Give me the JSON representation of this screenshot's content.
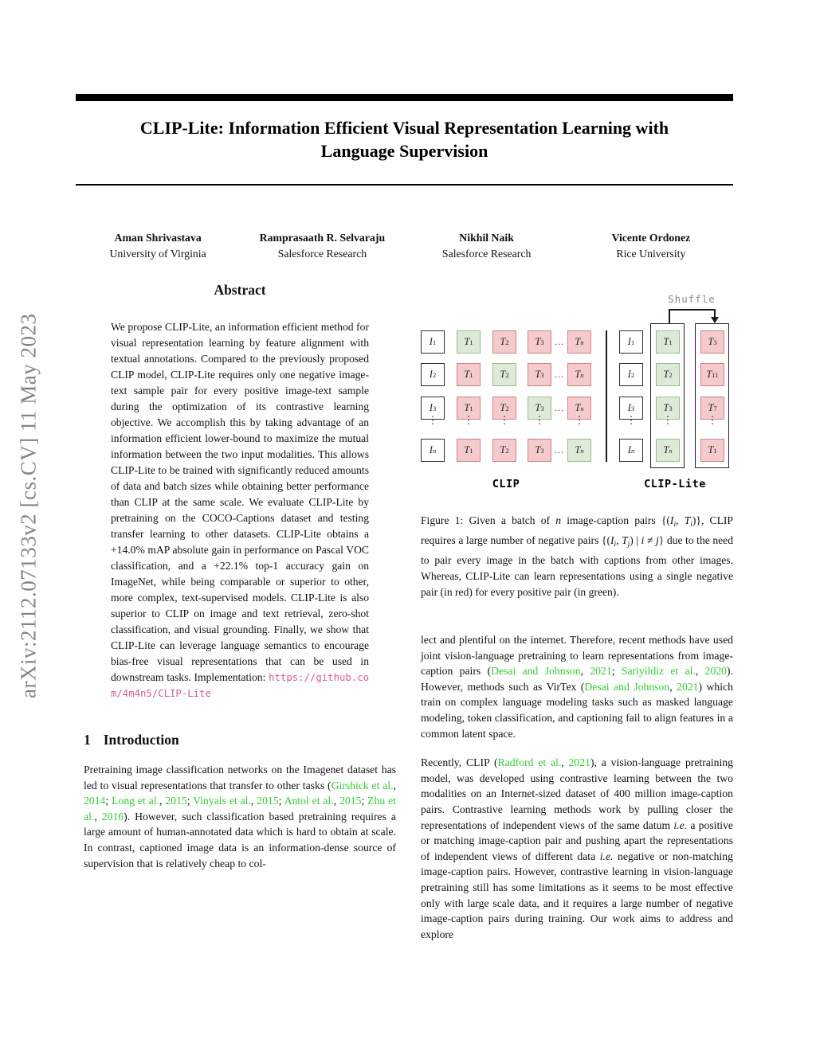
{
  "colors": {
    "citation_green": "#33cc33",
    "url_pink": "#d45d96",
    "box_green_fill": "#dcead6",
    "box_green_border": "#9cba92",
    "box_red_fill": "#f5cacc",
    "box_red_border": "#cf8289"
  },
  "sidebar": {
    "arxiv_label": "arXiv:2112.07133v2  [cs.CV]  11 May 2023"
  },
  "title": {
    "line1": "CLIP-Lite: Information Efficient Visual Representation Learning with",
    "line2": "Language Supervision"
  },
  "authors": [
    {
      "name": "Aman Shrivastava",
      "affiliation": "University of Virginia"
    },
    {
      "name": "Ramprasaath R. Selvaraju",
      "affiliation": "Salesforce Research"
    },
    {
      "name": "Nikhil Naik",
      "affiliation": "Salesforce Research"
    },
    {
      "name": "Vicente Ordonez",
      "affiliation": "Rice University"
    }
  ],
  "abstract": {
    "heading": "Abstract",
    "segments": [
      {
        "t": "We propose CLIP-Lite, an information efficient method for visual representation learning by feature alignment with textual annotations. Compared to the previously proposed CLIP model, CLIP-Lite requires only one negative image-text sample pair for every positive image-text sample during the optimization of its contrastive learning objective. We accomplish this by taking advantage of an information efficient lower-bound to maximize the mutual information between the two input modalities. This allows CLIP-Lite to be trained with significantly reduced amounts of data and batch sizes while obtaining better performance than CLIP at the same scale. We evaluate CLIP-Lite by pretraining on the COCO-Captions dataset and testing transfer learning to other datasets. CLIP-Lite obtains a +14.0% mAP absolute gain in performance on Pascal VOC classification, and a +22.1% top-1 accuracy gain on ImageNet, while being comparable or superior to other, more complex, text-supervised models. CLIP-Lite is also superior to CLIP on image and text retrieval, zero-shot classification, and visual grounding. Finally, we show that CLIP-Lite can leverage language semantics to encourage bias-free visual representations that can be used in downstream tasks. Implementation: "
      },
      {
        "t": "https://github.com/4m4n5/CLIP-Lite",
        "s": "link"
      }
    ]
  },
  "sections": {
    "intro": {
      "number": "1",
      "title": "Introduction"
    }
  },
  "intro": {
    "segments": [
      {
        "t": "Pretraining image classification networks on the Imagenet dataset has led to visual representations that transfer to other tasks ("
      },
      {
        "t": "Girshick et al.",
        "s": "cite"
      },
      {
        "t": ", "
      },
      {
        "t": "2014",
        "s": "cite"
      },
      {
        "t": "; "
      },
      {
        "t": "Long et al.",
        "s": "cite"
      },
      {
        "t": ", "
      },
      {
        "t": "2015",
        "s": "cite"
      },
      {
        "t": "; "
      },
      {
        "t": "Vinyals et al.",
        "s": "cite"
      },
      {
        "t": ", "
      },
      {
        "t": "2015",
        "s": "cite"
      },
      {
        "t": "; "
      },
      {
        "t": "Antol et al.",
        "s": "cite"
      },
      {
        "t": ", "
      },
      {
        "t": "2015",
        "s": "cite"
      },
      {
        "t": "; "
      },
      {
        "t": "Zhu et al.",
        "s": "cite"
      },
      {
        "t": ", "
      },
      {
        "t": "2016",
        "s": "cite"
      },
      {
        "t": "). However, such classification based pretraining requires a large amount of human-annotated data which is hard to obtain at scale. In contrast, captioned image data is an information-dense source of supervision that is relatively cheap to col-"
      }
    ]
  },
  "figure1": {
    "shuffle_label": "Shuffle",
    "rows_i": [
      [
        "I",
        "1"
      ],
      [
        "I",
        "2"
      ],
      [
        "I",
        "3"
      ],
      [
        "I",
        "n"
      ]
    ],
    "clip": {
      "label": "CLIP",
      "t_cols": [
        [
          "T",
          "1"
        ],
        [
          "T",
          "2"
        ],
        [
          "T",
          "3"
        ],
        [
          "T",
          "n"
        ]
      ],
      "rows": [
        {
          "green_index": 0
        },
        {
          "green_index": 1
        },
        {
          "green_index": 2
        },
        {
          "green_index": 3
        }
      ]
    },
    "clip_lite": {
      "label": "CLIP-Lite",
      "positive_col": [
        [
          "T",
          "1"
        ],
        [
          "T",
          "2"
        ],
        [
          "T",
          "3"
        ],
        [
          "T",
          "n"
        ]
      ],
      "negative_col": [
        [
          "T",
          "3"
        ],
        [
          "T",
          "11"
        ],
        [
          "T",
          "7"
        ],
        [
          "T",
          "1"
        ]
      ]
    },
    "caption_segments": [
      {
        "t": "Figure 1: Given a batch of "
      },
      {
        "t": "n",
        "s": "math"
      },
      {
        "t": " image-caption pairs {("
      },
      {
        "t": "I",
        "s": "math"
      },
      {
        "t": "i",
        "s": "msub"
      },
      {
        "t": ", "
      },
      {
        "t": "T",
        "s": "math"
      },
      {
        "t": "i",
        "s": "msub"
      },
      {
        "t": ")}, CLIP requires a large number of negative pairs {("
      },
      {
        "t": "I",
        "s": "math"
      },
      {
        "t": "i",
        "s": "msub"
      },
      {
        "t": ", "
      },
      {
        "t": "T",
        "s": "math"
      },
      {
        "t": "j",
        "s": "msub"
      },
      {
        "t": ") | "
      },
      {
        "t": "i",
        "s": "math"
      },
      {
        "t": " ≠ "
      },
      {
        "t": "j",
        "s": "math"
      },
      {
        "t": "} due to the need to pair every image in the batch with captions from other images. Whereas, CLIP-Lite can learn representations using a single negative pair (in red) for every positive pair (in green)."
      }
    ]
  },
  "right_col": {
    "p1_segments": [
      {
        "t": "lect and plentiful on the internet. Therefore, recent methods have used joint vision-language pretraining to learn representations from image-caption pairs ("
      },
      {
        "t": "Desai and Johnson",
        "s": "cite"
      },
      {
        "t": ", "
      },
      {
        "t": "2021",
        "s": "cite"
      },
      {
        "t": "; "
      },
      {
        "t": "Sariyildiz et al.",
        "s": "cite"
      },
      {
        "t": ", "
      },
      {
        "t": "2020",
        "s": "cite"
      },
      {
        "t": "). However, methods such as VirTex ("
      },
      {
        "t": "Desai and Johnson",
        "s": "cite"
      },
      {
        "t": ", "
      },
      {
        "t": "2021",
        "s": "cite"
      },
      {
        "t": ") which train on complex language modeling tasks such as masked language modeling, token classification, and captioning fail to align features in a common latent space."
      }
    ],
    "p2_segments": [
      {
        "t": "Recently, CLIP ("
      },
      {
        "t": "Radford et al.",
        "s": "cite"
      },
      {
        "t": ", "
      },
      {
        "t": "2021",
        "s": "cite"
      },
      {
        "t": "), a vision-language pretraining model, was developed using contrastive learning between the two modalities on an Internet-sized dataset of 400 million image-caption pairs. Contrastive learning methods work by pulling closer the representations of independent views of the same datum "
      },
      {
        "t": "i.e.",
        "s": "em"
      },
      {
        "t": " a positive or matching image-caption pair and pushing apart the representations of independent views of different data "
      },
      {
        "t": "i.e.",
        "s": "em"
      },
      {
        "t": " negative or non-matching image-caption pairs. However, contrastive learning in vision-language pretraining still has some limitations as it seems to be most effective only with large scale data, and it requires a large number of negative image-caption pairs during training. Our work aims to address and explore"
      }
    ]
  }
}
